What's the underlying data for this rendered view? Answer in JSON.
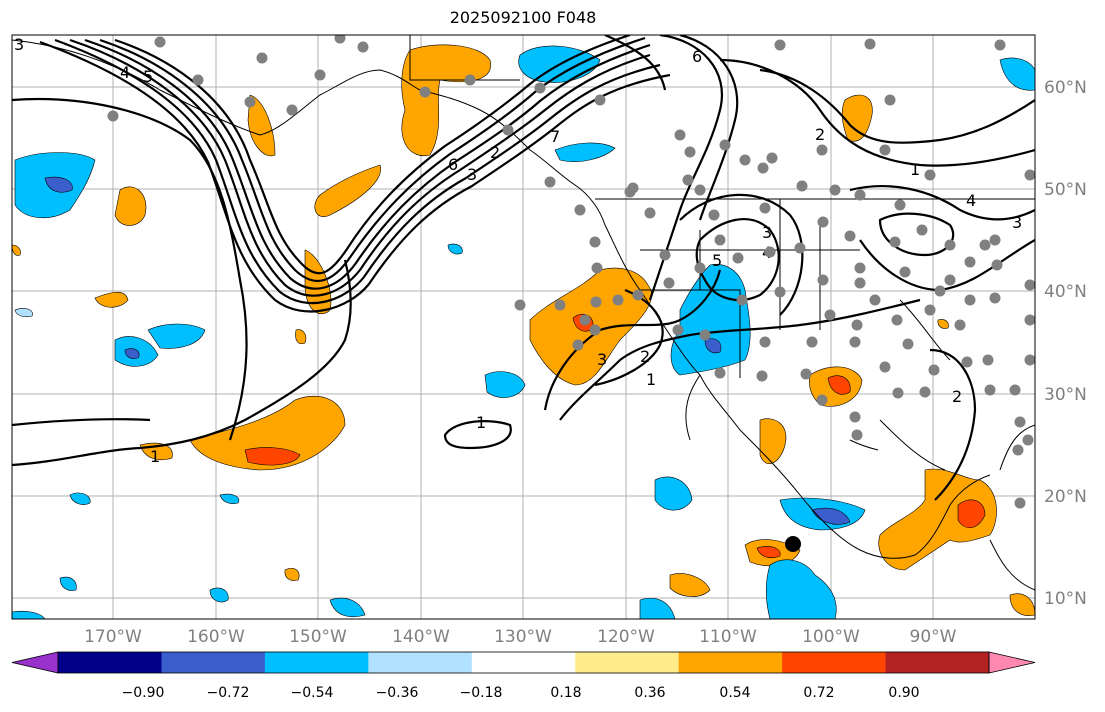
{
  "title": "2025092100 F048",
  "map": {
    "lon_ticks": [
      "170°W",
      "160°W",
      "150°W",
      "140°W",
      "130°W",
      "120°W",
      "110°W",
      "100°W",
      "90°W"
    ],
    "lat_ticks": [
      "60°N",
      "50°N",
      "40°N",
      "30°N",
      "20°N",
      "10°N"
    ],
    "contour_labels": [
      "3",
      "4",
      "5",
      "6",
      "6",
      "3",
      "2",
      "7",
      "2",
      "1",
      "4",
      "3",
      "3",
      "4",
      "5",
      "3",
      "2",
      "1",
      "1",
      "1",
      "2"
    ]
  },
  "colorbar": {
    "tick_labels": [
      "−0.90",
      "−0.72",
      "−0.54",
      "−0.36",
      "−0.18",
      "0.18",
      "0.36",
      "0.54",
      "0.72",
      "0.90"
    ],
    "colors": [
      "#9932cc",
      "#00008b",
      "#3a5fcd",
      "#00bfff",
      "#b0e2ff",
      "#ffffff",
      "#ffec8b",
      "#ffa500",
      "#ff4500",
      "#b22222",
      "#ff88b0"
    ]
  },
  "colors": {
    "land_stroke": "#000000",
    "grid": "#b0b0b0",
    "station_dot": "#808080",
    "marker": "#000000"
  }
}
